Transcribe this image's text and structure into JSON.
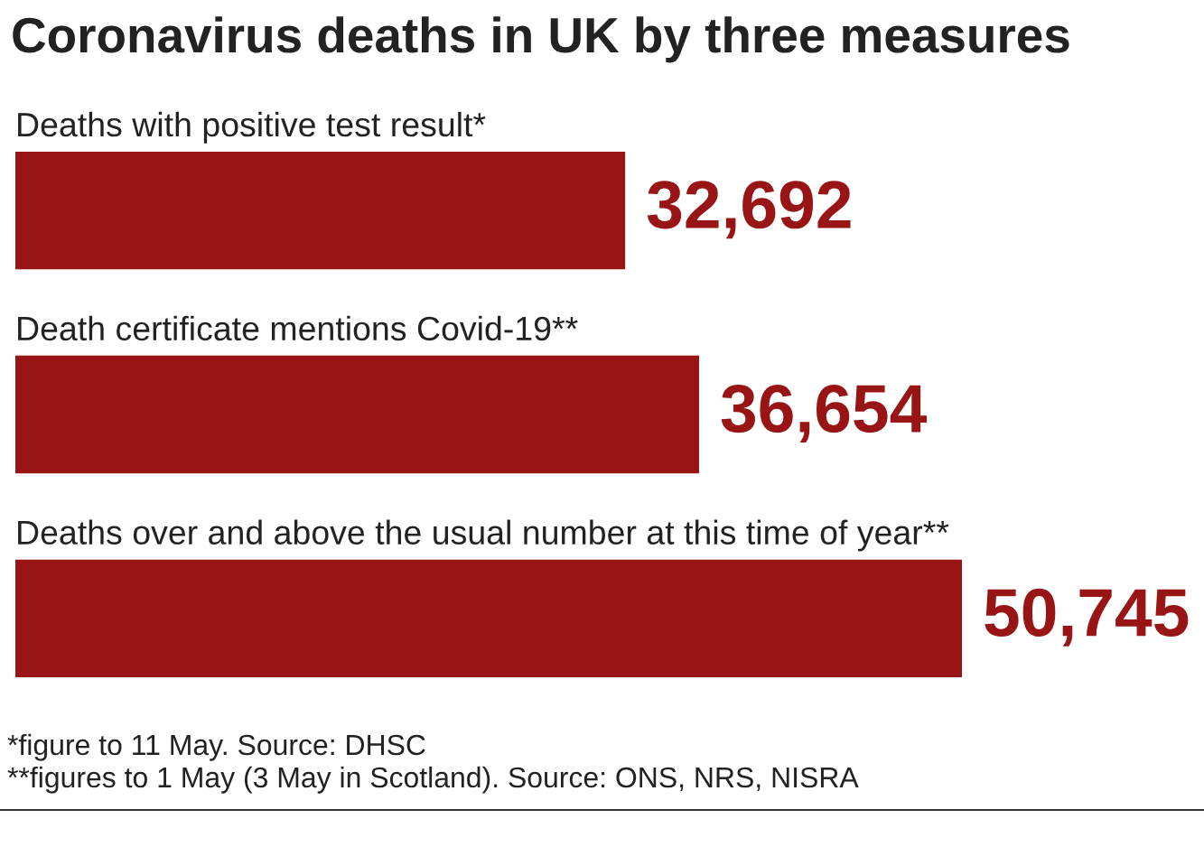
{
  "chart_data": {
    "type": "bar",
    "orientation": "horizontal",
    "title": "Coronavirus deaths in UK by three measures",
    "categories": [
      "Deaths with positive test result*",
      "Death certificate mentions Covid-19**",
      "Deaths over and above the usual number at this time of year**"
    ],
    "values": [
      32692,
      36654,
      50745
    ],
    "value_labels": [
      "32,692",
      "36,654",
      "50,745"
    ],
    "color": "#991414",
    "tick_labels": "y",
    "annotations": [
      "*figure to 11 May. Source: DHSC",
      "**figures to 1 May (3 May in Scotland). Source: ONS, NRS, NISRA"
    ]
  }
}
